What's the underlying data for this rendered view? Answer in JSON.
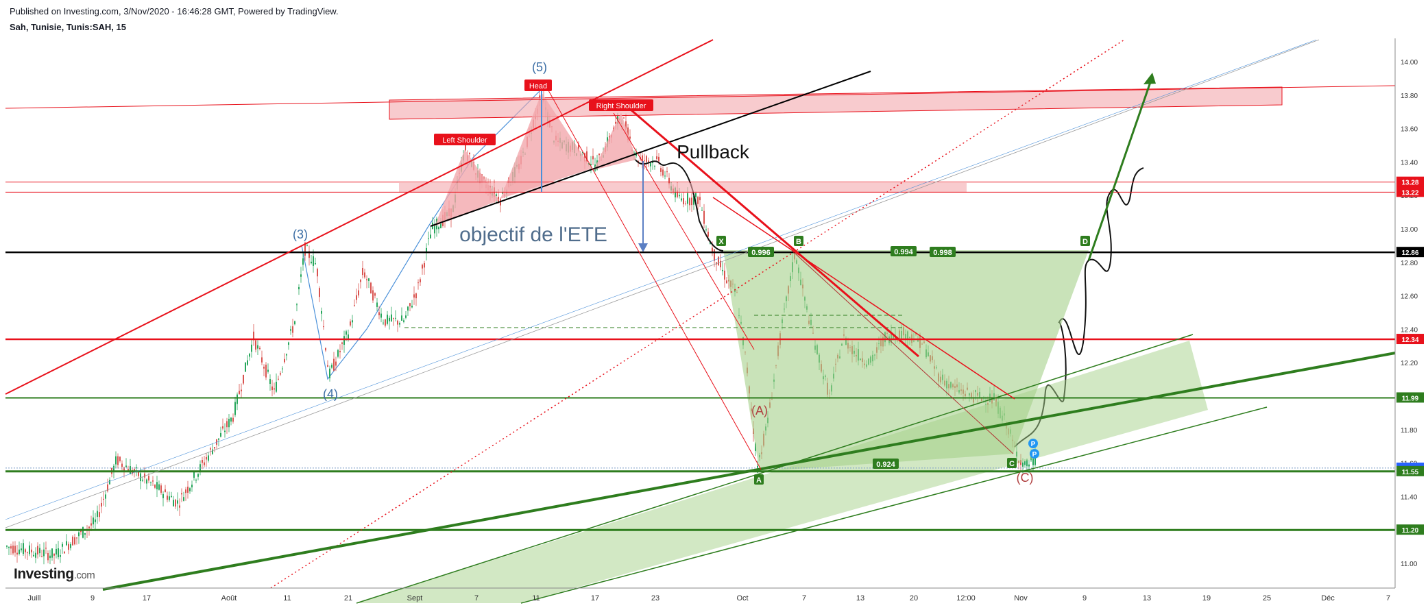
{
  "header": {
    "published": "Published on Investing.com, 3/Nov/2020 - 16:46:28 GMT, Powered by TradingView.",
    "symbol": "Sah, Tunisie, Tunis:SAH, 15"
  },
  "logo": {
    "brand": "Investing",
    "suffix": ".com"
  },
  "colors": {
    "red": "#e8111b",
    "green": "#2e7d1e",
    "green_fill": "#a5d18a",
    "pink_fill": "#f3a8ad",
    "blue": "#4a90d9",
    "elliott_blue": "#3b6ea5",
    "text_blue": "#506d8c"
  },
  "chart_data": {
    "type": "candlestick",
    "ylim": [
      10.85,
      14.1
    ],
    "yticks": [
      "14.00",
      "13.80",
      "13.60",
      "13.40",
      "13.20",
      "13.00",
      "12.80",
      "12.60",
      "12.40",
      "12.20",
      "12.00",
      "11.80",
      "11.60",
      "11.40",
      "11.20",
      "11.00"
    ],
    "xticks": [
      "Juill",
      "9",
      "17",
      "Août",
      "11",
      "21",
      "Sept",
      "7",
      "11",
      "17",
      "23",
      "Oct",
      "7",
      "13",
      "20",
      "12:00",
      "Nov",
      "9",
      "13",
      "19",
      "25",
      "Déc",
      "7"
    ],
    "price_labels": [
      {
        "value": 13.28,
        "text": "13.28",
        "color": "#e8111b"
      },
      {
        "value": 13.22,
        "text": "13.22",
        "color": "#e8111b"
      },
      {
        "value": 12.86,
        "text": "12.86",
        "color": "#000000"
      },
      {
        "value": 12.34,
        "text": "12.34",
        "color": "#e8111b"
      },
      {
        "value": 11.99,
        "text": "11.99",
        "color": "#2e7d1e"
      },
      {
        "value": 11.57,
        "text": "11.57",
        "color": "#2962ff"
      },
      {
        "value": 11.55,
        "text": "11.55",
        "color": "#2e7d1e"
      },
      {
        "value": 11.2,
        "text": "11.20",
        "color": "#2e7d1e"
      }
    ],
    "annotations": {
      "pullback": "Pullback",
      "target": "objectif de l'ETE",
      "head": "Head",
      "left_shoulder": "Left Shoulder",
      "right_shoulder": "Right Shoulder",
      "wave3": "(3)",
      "wave4": "(4)",
      "wave5": "(5)",
      "waveA": "(A)",
      "waveC": "(C)",
      "x": "X",
      "a": "A",
      "b": "B",
      "c": "C",
      "d": "D",
      "r1": "0.996",
      "r2": "0.994",
      "r3": "0.998",
      "r4": "0.924",
      "p": "P"
    }
  }
}
